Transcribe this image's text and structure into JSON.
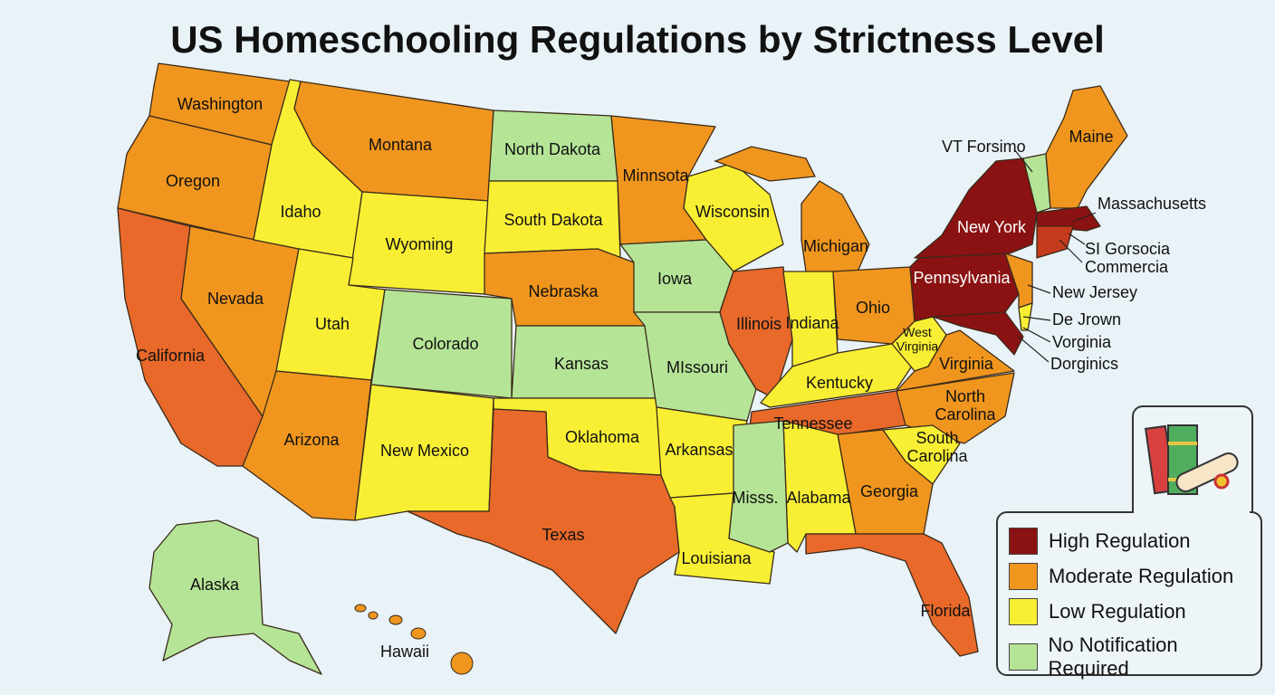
{
  "title": "US Homeschooling Regulations by Strictness Level",
  "colors": {
    "high": "#8b1212",
    "moderate": "#f0961e",
    "low": "#f8ef34",
    "none": "#b5e497",
    "high_alt": "#c53a1c",
    "moderate_dark": "#e8692a",
    "background": "#e9f2f7"
  },
  "legend": {
    "icon": "books-and-diploma-icon",
    "items": [
      {
        "label": "High Regulation",
        "level": "high"
      },
      {
        "label": "Moderate Regulation",
        "level": "moderate"
      },
      {
        "label": "Low Regulation",
        "level": "low"
      },
      {
        "label": "No Notification Required",
        "level": "none"
      }
    ]
  },
  "states": [
    {
      "label": "Washington",
      "level": "moderate"
    },
    {
      "label": "Oregon",
      "level": "moderate"
    },
    {
      "label": "California",
      "level": "moderate_dark"
    },
    {
      "label": "Nevada",
      "level": "moderate"
    },
    {
      "label": "Idaho",
      "level": "low"
    },
    {
      "label": "Montana",
      "level": "moderate"
    },
    {
      "label": "Wyoming",
      "level": "low"
    },
    {
      "label": "Utah",
      "level": "low"
    },
    {
      "label": "Colorado",
      "level": "none"
    },
    {
      "label": "Arizona",
      "level": "moderate"
    },
    {
      "label": "New Mexico",
      "level": "low"
    },
    {
      "label": "North Dakota",
      "level": "none"
    },
    {
      "label": "South Dakota",
      "level": "low"
    },
    {
      "label": "Nebraska",
      "level": "moderate"
    },
    {
      "label": "Kansas",
      "level": "none"
    },
    {
      "label": "Oklahoma",
      "level": "low"
    },
    {
      "label": "Texas",
      "level": "moderate_dark"
    },
    {
      "label": "Minnsota",
      "level": "moderate"
    },
    {
      "label": "Iowa",
      "level": "none"
    },
    {
      "label": "MIssouri",
      "level": "none"
    },
    {
      "label": "Arkansas",
      "level": "low"
    },
    {
      "label": "Louisiana",
      "level": "low"
    },
    {
      "label": "Wisconsin",
      "level": "low"
    },
    {
      "label": "Illinois",
      "level": "moderate_dark"
    },
    {
      "label": "Michigan",
      "level": "moderate"
    },
    {
      "label": "Indiana",
      "level": "low"
    },
    {
      "label": "Ohio",
      "level": "moderate"
    },
    {
      "label": "Kentucky",
      "level": "low"
    },
    {
      "label": "West Virginia",
      "level": "low"
    },
    {
      "label": "Virginia",
      "level": "moderate"
    },
    {
      "label": "Tennessee",
      "level": "moderate_dark"
    },
    {
      "label": "North Carolina",
      "level": "moderate"
    },
    {
      "label": "South Carolina",
      "level": "low"
    },
    {
      "label": "Georgia",
      "level": "moderate"
    },
    {
      "label": "Alabama",
      "level": "low"
    },
    {
      "label": "Misss.",
      "level": "none"
    },
    {
      "label": "Florida",
      "level": "moderate_dark"
    },
    {
      "label": "Pennsylvania",
      "level": "high"
    },
    {
      "label": "New York",
      "level": "high"
    },
    {
      "label": "",
      "level": "moderate"
    },
    {
      "label": "",
      "level": "none"
    },
    {
      "label": "Maine",
      "level": "moderate"
    },
    {
      "label": "",
      "level": "high"
    },
    {
      "label": "",
      "level": "high_alt"
    },
    {
      "label": "",
      "level": "high"
    },
    {
      "label": "",
      "level": "low"
    },
    {
      "label": "Alaska",
      "level": "none"
    },
    {
      "label": "Hawaii",
      "level": "moderate"
    }
  ],
  "callouts": [
    "VT Forsimo",
    "Massachusetts",
    "SI Gorsocia",
    "Commercia",
    "New Jersey",
    "De Jrown",
    "Vorginia",
    "Dorginics"
  ]
}
